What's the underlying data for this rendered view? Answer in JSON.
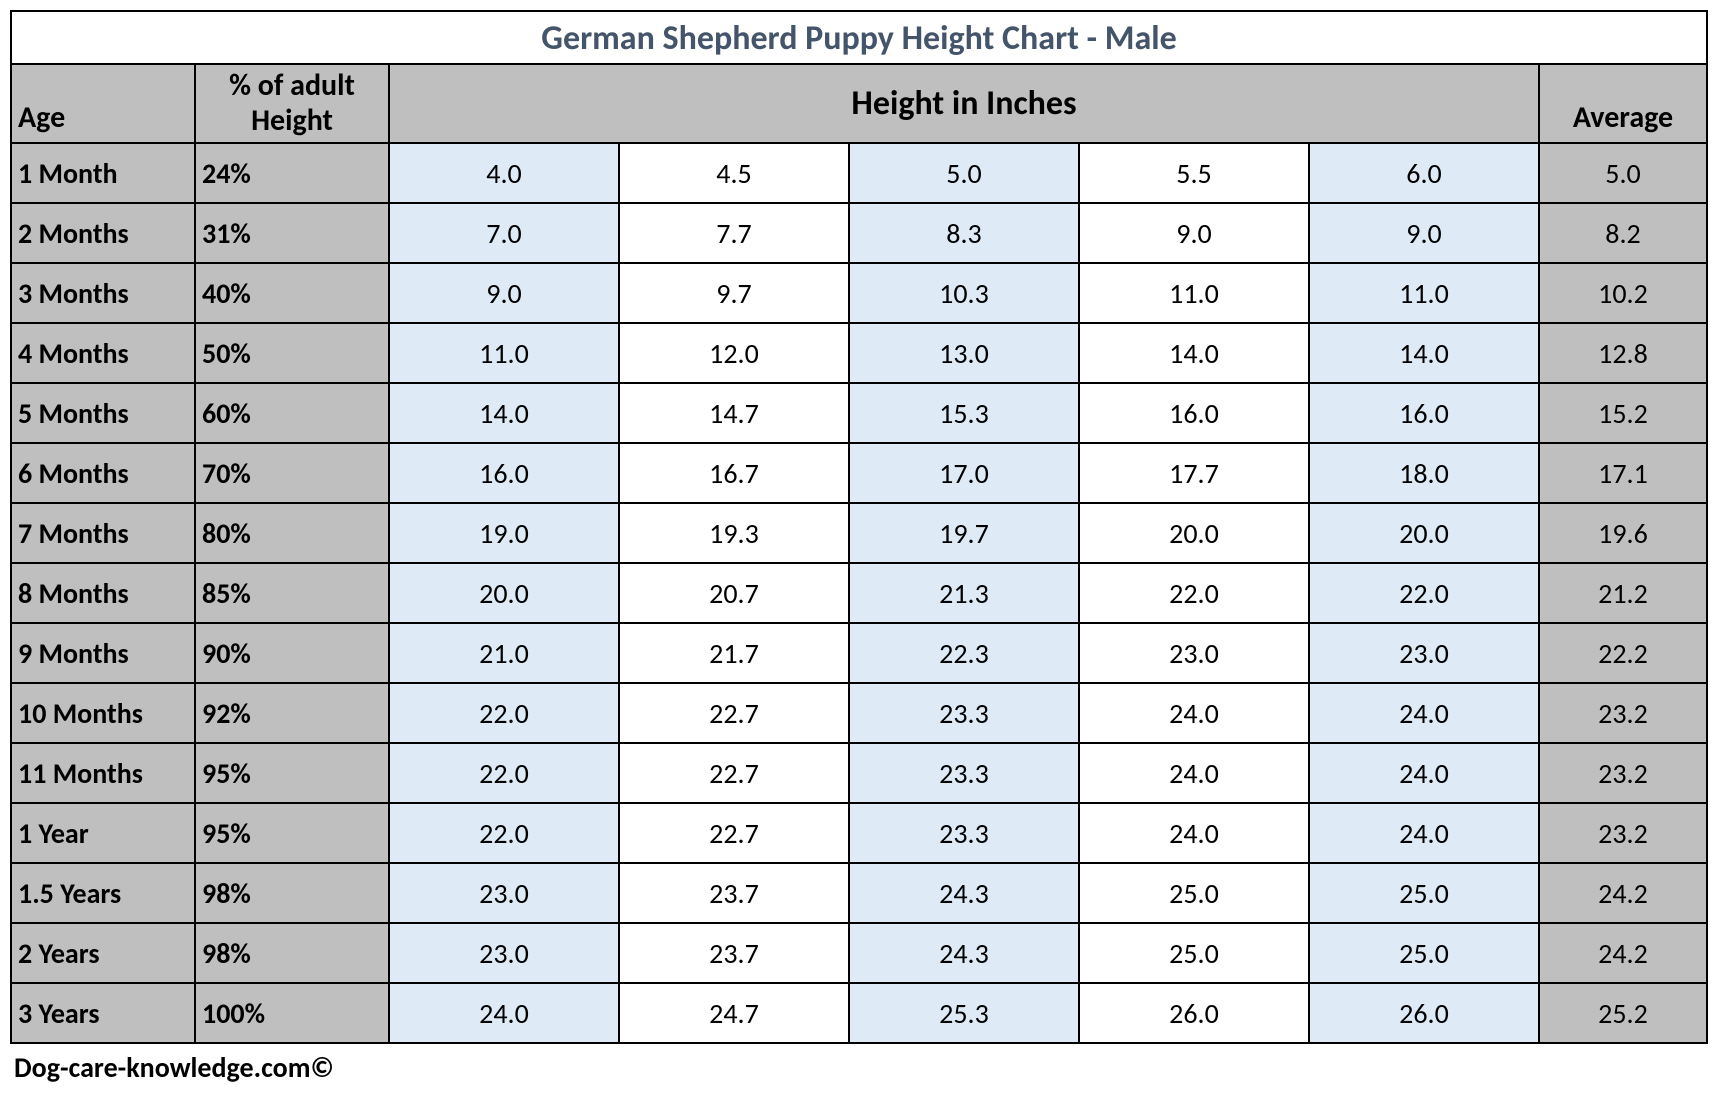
{
  "title": "German Shepherd Puppy Height Chart - Male",
  "title_color": "#44546a",
  "title_fontsize": 34,
  "header_bg": "#bfbfbf",
  "blue_bg": "#deeaf6",
  "white_bg": "#ffffff",
  "border_color": "#000000",
  "font_family": "Calibri, Arial, sans-serif",
  "data_fontsize": 28,
  "columns": {
    "age": "Age",
    "pct_line1": "% of adult",
    "pct_line2": "Height",
    "heights": "Height in Inches",
    "average": "Average"
  },
  "rows": [
    {
      "age": "1 Month",
      "pct": "24%",
      "h": [
        "4.0",
        "4.5",
        "5.0",
        "5.5",
        "6.0"
      ],
      "avg": "5.0"
    },
    {
      "age": "2 Months",
      "pct": "31%",
      "h": [
        "7.0",
        "7.7",
        "8.3",
        "9.0",
        "9.0"
      ],
      "avg": "8.2"
    },
    {
      "age": "3 Months",
      "pct": "40%",
      "h": [
        "9.0",
        "9.7",
        "10.3",
        "11.0",
        "11.0"
      ],
      "avg": "10.2"
    },
    {
      "age": "4 Months",
      "pct": "50%",
      "h": [
        "11.0",
        "12.0",
        "13.0",
        "14.0",
        "14.0"
      ],
      "avg": "12.8"
    },
    {
      "age": "5 Months",
      "pct": "60%",
      "h": [
        "14.0",
        "14.7",
        "15.3",
        "16.0",
        "16.0"
      ],
      "avg": "15.2"
    },
    {
      "age": "6 Months",
      "pct": "70%",
      "h": [
        "16.0",
        "16.7",
        "17.0",
        "17.7",
        "18.0"
      ],
      "avg": "17.1"
    },
    {
      "age": "7 Months",
      "pct": "80%",
      "h": [
        "19.0",
        "19.3",
        "19.7",
        "20.0",
        "20.0"
      ],
      "avg": "19.6"
    },
    {
      "age": "8 Months",
      "pct": "85%",
      "h": [
        "20.0",
        "20.7",
        "21.3",
        "22.0",
        "22.0"
      ],
      "avg": "21.2"
    },
    {
      "age": "9 Months",
      "pct": "90%",
      "h": [
        "21.0",
        "21.7",
        "22.3",
        "23.0",
        "23.0"
      ],
      "avg": "22.2"
    },
    {
      "age": "10 Months",
      "pct": "92%",
      "h": [
        "22.0",
        "22.7",
        "23.3",
        "24.0",
        "24.0"
      ],
      "avg": "23.2"
    },
    {
      "age": "11 Months",
      "pct": "95%",
      "h": [
        "22.0",
        "22.7",
        "23.3",
        "24.0",
        "24.0"
      ],
      "avg": "23.2"
    },
    {
      "age": "1 Year",
      "pct": "95%",
      "h": [
        "22.0",
        "22.7",
        "23.3",
        "24.0",
        "24.0"
      ],
      "avg": "23.2"
    },
    {
      "age": "1.5 Years",
      "pct": "98%",
      "h": [
        "23.0",
        "23.7",
        "24.3",
        "25.0",
        "25.0"
      ],
      "avg": "24.2"
    },
    {
      "age": "2 Years",
      "pct": "98%",
      "h": [
        "23.0",
        "23.7",
        "24.3",
        "25.0",
        "25.0"
      ],
      "avg": "24.2"
    },
    {
      "age": "3 Years",
      "pct": "100%",
      "h": [
        "24.0",
        "24.7",
        "25.3",
        "26.0",
        "26.0"
      ],
      "avg": "25.2"
    }
  ],
  "height_col_bg_pattern": [
    "blue",
    "white",
    "blue",
    "white",
    "blue"
  ],
  "footer": "Dog-care-knowledge.com©"
}
